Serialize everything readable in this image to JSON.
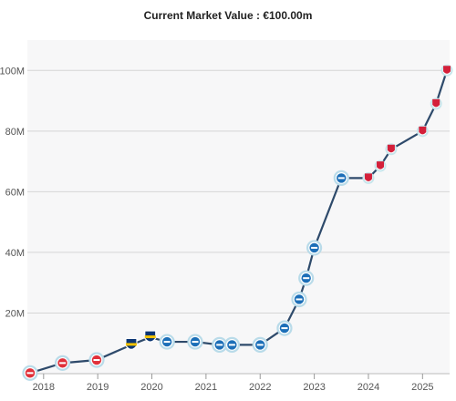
{
  "chart_data": {
    "type": "line",
    "title": "Current Market Value : €100.00m",
    "xlabel": "",
    "ylabel": "",
    "xlim": [
      2017.7,
      2025.5
    ],
    "ylim": [
      0,
      110
    ],
    "y_ticks": [
      {
        "value": 20,
        "label": "20M"
      },
      {
        "value": 40,
        "label": "40M"
      },
      {
        "value": 60,
        "label": "60M"
      },
      {
        "value": 80,
        "label": "80M"
      },
      {
        "value": 100,
        "label": "100M"
      }
    ],
    "x_ticks": [
      {
        "value": 2018,
        "label": "2018"
      },
      {
        "value": 2019,
        "label": "2019"
      },
      {
        "value": 2020,
        "label": "2020"
      },
      {
        "value": 2021,
        "label": "2021"
      },
      {
        "value": 2022,
        "label": "2022"
      },
      {
        "value": 2023,
        "label": "2023"
      },
      {
        "value": 2024,
        "label": "2024"
      },
      {
        "value": 2025,
        "label": "2025"
      }
    ],
    "grid": "horizontal",
    "line_color": "#2e4a6b",
    "series": [
      {
        "name": "",
        "points": [
          {
            "x": 2017.75,
            "y": 0.2,
            "club": "red"
          },
          {
            "x": 2018.35,
            "y": 3.5,
            "club": "red"
          },
          {
            "x": 2018.98,
            "y": 4.5,
            "club": "red"
          },
          {
            "x": 2019.62,
            "y": 9.5,
            "club": "boca"
          },
          {
            "x": 2019.97,
            "y": 12.0,
            "club": "boca"
          },
          {
            "x": 2020.28,
            "y": 10.5,
            "club": "blue"
          },
          {
            "x": 2020.8,
            "y": 10.5,
            "club": "blue"
          },
          {
            "x": 2021.25,
            "y": 9.5,
            "club": "blue"
          },
          {
            "x": 2021.48,
            "y": 9.5,
            "club": "blue"
          },
          {
            "x": 2022.0,
            "y": 9.5,
            "club": "blue"
          },
          {
            "x": 2022.45,
            "y": 15.0,
            "club": "blue"
          },
          {
            "x": 2022.72,
            "y": 24.5,
            "club": "blue"
          },
          {
            "x": 2022.85,
            "y": 31.5,
            "club": "blue"
          },
          {
            "x": 2023.0,
            "y": 41.5,
            "club": "blue"
          },
          {
            "x": 2023.5,
            "y": 64.5,
            "club": "blue"
          },
          {
            "x": 2024.0,
            "y": 64.5,
            "club": "red-crest"
          },
          {
            "x": 2024.22,
            "y": 68.5,
            "club": "red-crest"
          },
          {
            "x": 2024.42,
            "y": 74.0,
            "club": "red-crest"
          },
          {
            "x": 2025.0,
            "y": 80.0,
            "club": "red-crest"
          },
          {
            "x": 2025.25,
            "y": 89.0,
            "club": "red-crest"
          },
          {
            "x": 2025.45,
            "y": 100.0,
            "club": "red-crest"
          }
        ]
      }
    ],
    "colors": {
      "red": "#e0303a",
      "blue": "#1c6fb8",
      "boca": "#0a3573",
      "boca_stripe": "#f2c200",
      "red-crest": "#d4203a",
      "plot_bg": "#f7f7f8",
      "grid": "#d6d6d6"
    }
  }
}
